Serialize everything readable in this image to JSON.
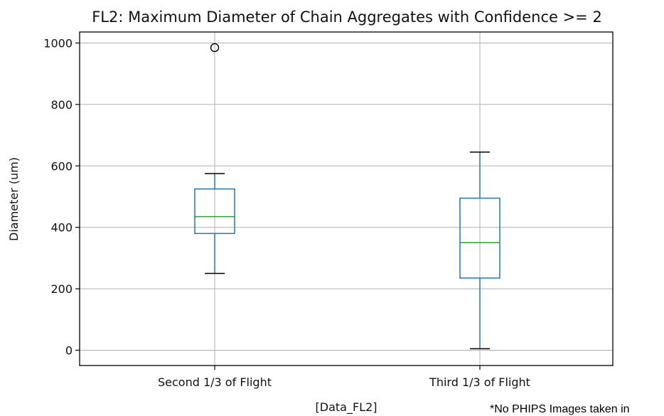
{
  "chart_data": {
    "type": "box",
    "title": "FL2: Maximum Diameter of Chain Aggregates with Confidence >= 2",
    "xlabel": "[Data_FL2]",
    "ylabel": "Diameter (um)",
    "ylim": [
      -45,
      1035
    ],
    "yticks": [
      0,
      200,
      400,
      600,
      800,
      1000
    ],
    "grid": true,
    "categories": [
      "Second 1/3 of Flight",
      "Third 1/3 of Flight"
    ],
    "boxes": [
      {
        "category": "Second 1/3 of Flight",
        "whisker_low": 250,
        "q1": 380,
        "median": 435,
        "q3": 525,
        "whisker_high": 575,
        "outliers": [
          985
        ]
      },
      {
        "category": "Third 1/3 of Flight",
        "whisker_low": 5,
        "q1": 235,
        "median": 350,
        "q3": 495,
        "whisker_high": 645,
        "outliers": []
      }
    ],
    "colors": {
      "box": "#1f77b4",
      "median": "#2ca02c",
      "whisker_cap": "#000000",
      "grid": "#b0b0b0",
      "outlier": "#000000"
    }
  },
  "note": "*No PHIPS Images taken in"
}
